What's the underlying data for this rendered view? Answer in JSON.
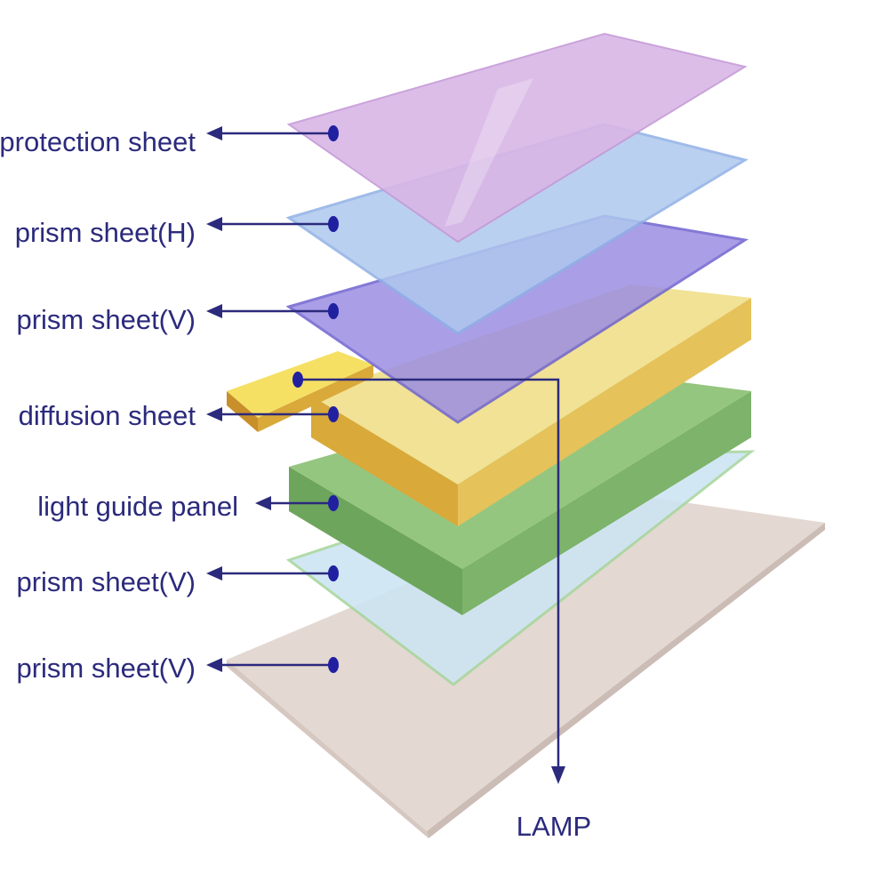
{
  "labels": {
    "protection": "protection sheet",
    "prism_h": "prism sheet(H)",
    "prism_v1": "prism sheet(V)",
    "diffusion": "diffusion sheet",
    "light_guide": "light guide panel",
    "prism_v2": "prism sheet(V)",
    "prism_v3": "prism sheet(V)",
    "lamp": "LAMP"
  },
  "colors": {
    "text": "#2b2a7c",
    "protection": "#d9b8e6",
    "prism_h": "#b4cdef",
    "prism_v": "#a99ae6",
    "diffusion": "#f0e290",
    "light_guide": "#8fc07a",
    "prism_v_lower": "#cfe6f4",
    "base": "#e6dbd6"
  }
}
